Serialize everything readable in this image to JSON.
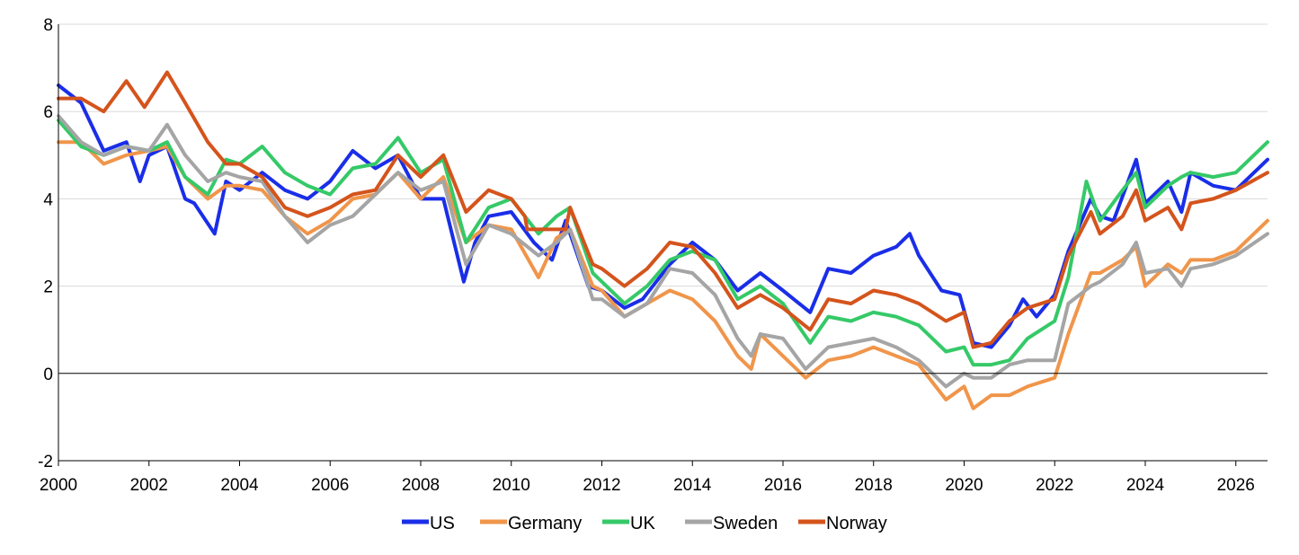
{
  "chart_data": {
    "type": "line",
    "title": "",
    "xlabel": "",
    "ylabel": "",
    "xlim": [
      2000,
      2026.7
    ],
    "ylim": [
      -2,
      8
    ],
    "x_ticks": [
      "2000",
      "2002",
      "2004",
      "2006",
      "2008",
      "2010",
      "2012",
      "2014",
      "2016",
      "2018",
      "2020",
      "2022",
      "2024",
      "2026"
    ],
    "y_ticks": [
      "-2",
      "0",
      "2",
      "4",
      "6",
      "8"
    ],
    "grid": "horizontal",
    "legend_position": "bottom",
    "series": [
      {
        "name": "US",
        "color": "#1a2ee8",
        "points": [
          [
            2000,
            6.6
          ],
          [
            2000.5,
            6.2
          ],
          [
            2001,
            5.1
          ],
          [
            2001.5,
            5.3
          ],
          [
            2001.8,
            4.4
          ],
          [
            2002,
            5.0
          ],
          [
            2002.4,
            5.2
          ],
          [
            2002.8,
            4.0
          ],
          [
            2003,
            3.9
          ],
          [
            2003.45,
            3.2
          ],
          [
            2003.7,
            4.4
          ],
          [
            2004,
            4.2
          ],
          [
            2004.5,
            4.6
          ],
          [
            2005,
            4.2
          ],
          [
            2005.5,
            4.0
          ],
          [
            2006,
            4.4
          ],
          [
            2006.5,
            5.1
          ],
          [
            2007,
            4.7
          ],
          [
            2007.5,
            5.0
          ],
          [
            2008,
            4.0
          ],
          [
            2008.5,
            4.0
          ],
          [
            2008.95,
            2.1
          ],
          [
            2009.2,
            3.0
          ],
          [
            2009.5,
            3.6
          ],
          [
            2010,
            3.7
          ],
          [
            2010.5,
            3.0
          ],
          [
            2010.9,
            2.6
          ],
          [
            2011.2,
            3.5
          ],
          [
            2011.7,
            2.0
          ],
          [
            2012,
            1.9
          ],
          [
            2012.5,
            1.5
          ],
          [
            2012.9,
            1.7
          ],
          [
            2013.5,
            2.5
          ],
          [
            2014,
            3.0
          ],
          [
            2014.5,
            2.6
          ],
          [
            2015,
            1.9
          ],
          [
            2015.5,
            2.3
          ],
          [
            2016,
            1.9
          ],
          [
            2016.6,
            1.4
          ],
          [
            2017,
            2.4
          ],
          [
            2017.5,
            2.3
          ],
          [
            2018,
            2.7
          ],
          [
            2018.5,
            2.9
          ],
          [
            2018.8,
            3.2
          ],
          [
            2019,
            2.7
          ],
          [
            2019.5,
            1.9
          ],
          [
            2019.9,
            1.8
          ],
          [
            2020.2,
            0.7
          ],
          [
            2020.6,
            0.6
          ],
          [
            2021,
            1.1
          ],
          [
            2021.3,
            1.7
          ],
          [
            2021.6,
            1.3
          ],
          [
            2022,
            1.8
          ],
          [
            2022.3,
            2.8
          ],
          [
            2022.8,
            4.0
          ],
          [
            2023,
            3.6
          ],
          [
            2023.3,
            3.5
          ],
          [
            2023.8,
            4.9
          ],
          [
            2024,
            3.9
          ],
          [
            2024.5,
            4.4
          ],
          [
            2024.8,
            3.7
          ],
          [
            2025,
            4.6
          ],
          [
            2025.5,
            4.3
          ],
          [
            2026,
            4.2
          ],
          [
            2026.3,
            4.5
          ],
          [
            2026.7,
            4.9
          ]
        ]
      },
      {
        "name": "Germany",
        "color": "#f0954a",
        "points": [
          [
            2000,
            5.3
          ],
          [
            2000.5,
            5.3
          ],
          [
            2001,
            4.8
          ],
          [
            2001.5,
            5.0
          ],
          [
            2002,
            5.1
          ],
          [
            2002.4,
            5.2
          ],
          [
            2002.8,
            4.5
          ],
          [
            2003.3,
            4.0
          ],
          [
            2003.7,
            4.3
          ],
          [
            2004,
            4.3
          ],
          [
            2004.5,
            4.2
          ],
          [
            2005,
            3.6
          ],
          [
            2005.5,
            3.2
          ],
          [
            2006,
            3.5
          ],
          [
            2006.5,
            4.0
          ],
          [
            2007,
            4.1
          ],
          [
            2007.5,
            4.6
          ],
          [
            2008,
            4.0
          ],
          [
            2008.5,
            4.5
          ],
          [
            2009,
            3.0
          ],
          [
            2009.5,
            3.4
          ],
          [
            2010,
            3.3
          ],
          [
            2010.6,
            2.2
          ],
          [
            2011,
            3.1
          ],
          [
            2011.3,
            3.3
          ],
          [
            2011.8,
            2.0
          ],
          [
            2012,
            1.9
          ],
          [
            2012.5,
            1.3
          ],
          [
            2013,
            1.6
          ],
          [
            2013.5,
            1.9
          ],
          [
            2014,
            1.7
          ],
          [
            2014.5,
            1.2
          ],
          [
            2015,
            0.4
          ],
          [
            2015.3,
            0.1
          ],
          [
            2015.5,
            0.9
          ],
          [
            2016,
            0.4
          ],
          [
            2016.5,
            -0.1
          ],
          [
            2017,
            0.3
          ],
          [
            2017.5,
            0.4
          ],
          [
            2018,
            0.6
          ],
          [
            2018.5,
            0.4
          ],
          [
            2019,
            0.2
          ],
          [
            2019.6,
            -0.6
          ],
          [
            2020,
            -0.3
          ],
          [
            2020.2,
            -0.8
          ],
          [
            2020.6,
            -0.5
          ],
          [
            2021,
            -0.5
          ],
          [
            2021.4,
            -0.3
          ],
          [
            2022,
            -0.1
          ],
          [
            2022.3,
            0.9
          ],
          [
            2022.8,
            2.3
          ],
          [
            2023,
            2.3
          ],
          [
            2023.5,
            2.6
          ],
          [
            2023.8,
            2.9
          ],
          [
            2024,
            2.0
          ],
          [
            2024.5,
            2.5
          ],
          [
            2024.8,
            2.3
          ],
          [
            2025,
            2.6
          ],
          [
            2025.5,
            2.6
          ],
          [
            2026,
            2.8
          ],
          [
            2026.7,
            3.5
          ]
        ]
      },
      {
        "name": "UK",
        "color": "#35c968",
        "points": [
          [
            2000,
            5.8
          ],
          [
            2000.5,
            5.2
          ],
          [
            2001,
            5.0
          ],
          [
            2001.5,
            5.2
          ],
          [
            2002,
            5.1
          ],
          [
            2002.4,
            5.3
          ],
          [
            2002.8,
            4.5
          ],
          [
            2003.3,
            4.1
          ],
          [
            2003.7,
            4.9
          ],
          [
            2004,
            4.8
          ],
          [
            2004.5,
            5.2
          ],
          [
            2005,
            4.6
          ],
          [
            2005.5,
            4.3
          ],
          [
            2006,
            4.1
          ],
          [
            2006.5,
            4.7
          ],
          [
            2007,
            4.8
          ],
          [
            2007.5,
            5.4
          ],
          [
            2008,
            4.6
          ],
          [
            2008.5,
            4.9
          ],
          [
            2009,
            3.0
          ],
          [
            2009.5,
            3.8
          ],
          [
            2010,
            4.0
          ],
          [
            2010.6,
            3.2
          ],
          [
            2011,
            3.6
          ],
          [
            2011.3,
            3.8
          ],
          [
            2011.8,
            2.3
          ],
          [
            2012,
            2.1
          ],
          [
            2012.5,
            1.6
          ],
          [
            2013,
            2.0
          ],
          [
            2013.5,
            2.6
          ],
          [
            2014,
            2.8
          ],
          [
            2014.5,
            2.6
          ],
          [
            2015,
            1.7
          ],
          [
            2015.5,
            2.0
          ],
          [
            2016,
            1.6
          ],
          [
            2016.6,
            0.7
          ],
          [
            2017,
            1.3
          ],
          [
            2017.5,
            1.2
          ],
          [
            2018,
            1.4
          ],
          [
            2018.5,
            1.3
          ],
          [
            2019,
            1.1
          ],
          [
            2019.6,
            0.5
          ],
          [
            2020,
            0.6
          ],
          [
            2020.2,
            0.2
          ],
          [
            2020.6,
            0.2
          ],
          [
            2021,
            0.3
          ],
          [
            2021.4,
            0.8
          ],
          [
            2022,
            1.2
          ],
          [
            2022.3,
            2.2
          ],
          [
            2022.7,
            4.4
          ],
          [
            2023,
            3.5
          ],
          [
            2023.5,
            4.2
          ],
          [
            2023.8,
            4.6
          ],
          [
            2024,
            3.8
          ],
          [
            2024.5,
            4.3
          ],
          [
            2024.8,
            4.5
          ],
          [
            2025,
            4.6
          ],
          [
            2025.5,
            4.5
          ],
          [
            2026,
            4.6
          ],
          [
            2026.7,
            5.3
          ]
        ]
      },
      {
        "name": "Sweden",
        "color": "#a5a5a5",
        "points": [
          [
            2000,
            5.9
          ],
          [
            2000.5,
            5.3
          ],
          [
            2001,
            5.0
          ],
          [
            2001.5,
            5.2
          ],
          [
            2002,
            5.1
          ],
          [
            2002.4,
            5.7
          ],
          [
            2002.8,
            5.0
          ],
          [
            2003.3,
            4.4
          ],
          [
            2003.7,
            4.6
          ],
          [
            2004,
            4.5
          ],
          [
            2004.5,
            4.4
          ],
          [
            2005,
            3.6
          ],
          [
            2005.5,
            3.0
          ],
          [
            2006,
            3.4
          ],
          [
            2006.5,
            3.6
          ],
          [
            2007,
            4.1
          ],
          [
            2007.5,
            4.6
          ],
          [
            2008,
            4.2
          ],
          [
            2008.5,
            4.4
          ],
          [
            2009,
            2.5
          ],
          [
            2009.5,
            3.4
          ],
          [
            2010,
            3.2
          ],
          [
            2010.6,
            2.7
          ],
          [
            2011,
            3.0
          ],
          [
            2011.3,
            3.3
          ],
          [
            2011.8,
            1.7
          ],
          [
            2012,
            1.7
          ],
          [
            2012.5,
            1.3
          ],
          [
            2013,
            1.6
          ],
          [
            2013.5,
            2.4
          ],
          [
            2014,
            2.3
          ],
          [
            2014.5,
            1.8
          ],
          [
            2015,
            0.8
          ],
          [
            2015.3,
            0.4
          ],
          [
            2015.5,
            0.9
          ],
          [
            2016,
            0.8
          ],
          [
            2016.5,
            0.1
          ],
          [
            2017,
            0.6
          ],
          [
            2017.5,
            0.7
          ],
          [
            2018,
            0.8
          ],
          [
            2018.5,
            0.6
          ],
          [
            2019,
            0.3
          ],
          [
            2019.6,
            -0.3
          ],
          [
            2020,
            0.0
          ],
          [
            2020.2,
            -0.1
          ],
          [
            2020.6,
            -0.1
          ],
          [
            2021,
            0.2
          ],
          [
            2021.4,
            0.3
          ],
          [
            2022,
            0.3
          ],
          [
            2022.3,
            1.6
          ],
          [
            2022.8,
            2.0
          ],
          [
            2023,
            2.1
          ],
          [
            2023.5,
            2.5
          ],
          [
            2023.8,
            3.0
          ],
          [
            2024,
            2.3
          ],
          [
            2024.5,
            2.4
          ],
          [
            2024.8,
            2.0
          ],
          [
            2025,
            2.4
          ],
          [
            2025.5,
            2.5
          ],
          [
            2026,
            2.7
          ],
          [
            2026.7,
            3.2
          ]
        ]
      },
      {
        "name": "Norway",
        "color": "#d4541c",
        "points": [
          [
            2000,
            6.3
          ],
          [
            2000.5,
            6.3
          ],
          [
            2001,
            6.0
          ],
          [
            2001.5,
            6.7
          ],
          [
            2001.9,
            6.1
          ],
          [
            2002.4,
            6.9
          ],
          [
            2002.8,
            6.2
          ],
          [
            2003.3,
            5.3
          ],
          [
            2003.7,
            4.8
          ],
          [
            2004,
            4.8
          ],
          [
            2004.5,
            4.5
          ],
          [
            2005,
            3.8
          ],
          [
            2005.5,
            3.6
          ],
          [
            2006,
            3.8
          ],
          [
            2006.5,
            4.1
          ],
          [
            2007,
            4.2
          ],
          [
            2007.5,
            5.0
          ],
          [
            2008,
            4.5
          ],
          [
            2008.5,
            5.0
          ],
          [
            2009,
            3.7
          ],
          [
            2009.5,
            4.2
          ],
          [
            2010,
            4.0
          ],
          [
            2010.3,
            3.6
          ],
          [
            2010.35,
            3.3
          ],
          [
            2011.2,
            3.3
          ],
          [
            2011.3,
            3.8
          ],
          [
            2011.8,
            2.5
          ],
          [
            2012,
            2.4
          ],
          [
            2012.5,
            2.0
          ],
          [
            2013,
            2.4
          ],
          [
            2013.5,
            3.0
          ],
          [
            2014,
            2.9
          ],
          [
            2014.5,
            2.3
          ],
          [
            2015,
            1.5
          ],
          [
            2015.5,
            1.8
          ],
          [
            2016,
            1.5
          ],
          [
            2016.6,
            1.0
          ],
          [
            2017,
            1.7
          ],
          [
            2017.5,
            1.6
          ],
          [
            2018,
            1.9
          ],
          [
            2018.5,
            1.8
          ],
          [
            2019,
            1.6
          ],
          [
            2019.6,
            1.2
          ],
          [
            2020,
            1.4
          ],
          [
            2020.2,
            0.6
          ],
          [
            2020.6,
            0.7
          ],
          [
            2021,
            1.2
          ],
          [
            2021.4,
            1.5
          ],
          [
            2022,
            1.7
          ],
          [
            2022.3,
            2.7
          ],
          [
            2022.8,
            3.7
          ],
          [
            2023,
            3.2
          ],
          [
            2023.5,
            3.6
          ],
          [
            2023.8,
            4.2
          ],
          [
            2024,
            3.5
          ],
          [
            2024.5,
            3.8
          ],
          [
            2024.8,
            3.3
          ],
          [
            2025,
            3.9
          ],
          [
            2025.5,
            4.0
          ],
          [
            2026,
            4.2
          ],
          [
            2026.7,
            4.6
          ]
        ]
      }
    ]
  }
}
